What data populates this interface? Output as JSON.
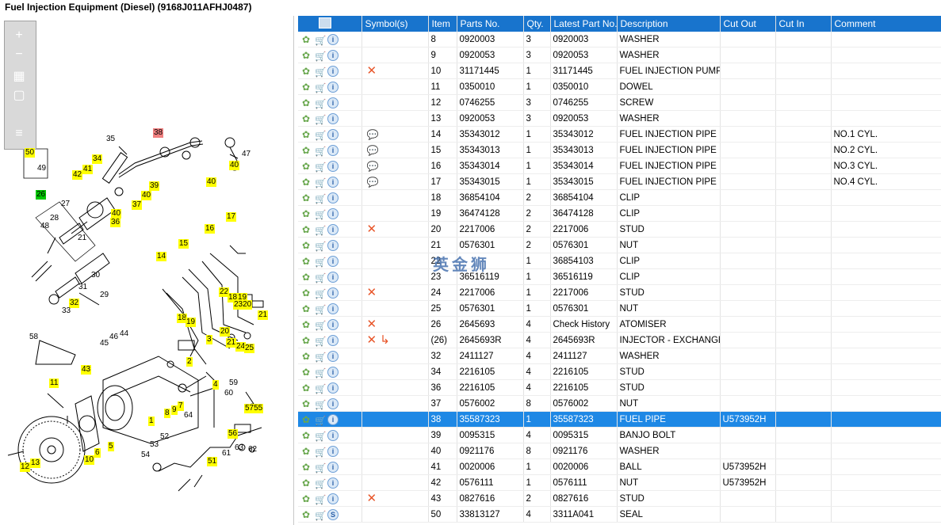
{
  "window": {
    "title": "Fuel Injection Equipment (Diesel) (9168J011AFHJ0487)"
  },
  "toolbar": {
    "zoom_in": "+",
    "zoom_out": "−",
    "fit": "▦",
    "actual": "▢",
    "list": "≡"
  },
  "watermark": "英金狮",
  "grid": {
    "columns": [
      "",
      "Symbol(s)",
      "Item",
      "Parts No.",
      "Qty.",
      "Latest Part No.",
      "Description",
      "Cut Out",
      "Cut In",
      "Comment"
    ],
    "rows": [
      {
        "sym": "",
        "item": "8",
        "part": "0920003",
        "qty": "3",
        "latest": "0920003",
        "desc": "WASHER",
        "out": "",
        "in": "",
        "comment": ""
      },
      {
        "sym": "",
        "item": "9",
        "part": "0920053",
        "qty": "3",
        "latest": "0920053",
        "desc": "WASHER",
        "out": "",
        "in": "",
        "comment": ""
      },
      {
        "sym": "✕",
        "item": "10",
        "part": "31171445",
        "qty": "1",
        "latest": "31171445",
        "desc": "FUEL INJECTION PUMP G",
        "out": "",
        "in": "",
        "comment": ""
      },
      {
        "sym": "",
        "item": "11",
        "part": "0350010",
        "qty": "1",
        "latest": "0350010",
        "desc": "DOWEL",
        "out": "",
        "in": "",
        "comment": ""
      },
      {
        "sym": "",
        "item": "12",
        "part": "0746255",
        "qty": "3",
        "latest": "0746255",
        "desc": "SCREW",
        "out": "",
        "in": "",
        "comment": ""
      },
      {
        "sym": "",
        "item": "13",
        "part": "0920053",
        "qty": "3",
        "latest": "0920053",
        "desc": "WASHER",
        "out": "",
        "in": "",
        "comment": ""
      },
      {
        "sym": "💬",
        "item": "14",
        "part": "35343012",
        "qty": "1",
        "latest": "35343012",
        "desc": "FUEL INJECTION PIPE",
        "out": "",
        "in": "",
        "comment": "NO.1 CYL."
      },
      {
        "sym": "💬",
        "item": "15",
        "part": "35343013",
        "qty": "1",
        "latest": "35343013",
        "desc": "FUEL INJECTION PIPE",
        "out": "",
        "in": "",
        "comment": "NO.2 CYL."
      },
      {
        "sym": "💬",
        "item": "16",
        "part": "35343014",
        "qty": "1",
        "latest": "35343014",
        "desc": "FUEL INJECTION PIPE",
        "out": "",
        "in": "",
        "comment": "NO.3 CYL."
      },
      {
        "sym": "💬",
        "item": "17",
        "part": "35343015",
        "qty": "1",
        "latest": "35343015",
        "desc": "FUEL INJECTION PIPE",
        "out": "",
        "in": "",
        "comment": "NO.4 CYL."
      },
      {
        "sym": "",
        "item": "18",
        "part": "36854104",
        "qty": "2",
        "latest": "36854104",
        "desc": "CLIP",
        "out": "",
        "in": "",
        "comment": ""
      },
      {
        "sym": "",
        "item": "19",
        "part": "36474128",
        "qty": "2",
        "latest": "36474128",
        "desc": "CLIP",
        "out": "",
        "in": "",
        "comment": ""
      },
      {
        "sym": "✕",
        "item": "20",
        "part": "2217006",
        "qty": "2",
        "latest": "2217006",
        "desc": "STUD",
        "out": "",
        "in": "",
        "comment": ""
      },
      {
        "sym": "",
        "item": "21",
        "part": "0576301",
        "qty": "2",
        "latest": "0576301",
        "desc": "NUT",
        "out": "",
        "in": "",
        "comment": ""
      },
      {
        "sym": "",
        "item": "22",
        "part": "",
        "qty": "1",
        "latest": "36854103",
        "desc": "CLIP",
        "out": "",
        "in": "",
        "comment": ""
      },
      {
        "sym": "",
        "item": "23",
        "part": "36516119",
        "qty": "1",
        "latest": "36516119",
        "desc": "CLIP",
        "out": "",
        "in": "",
        "comment": ""
      },
      {
        "sym": "✕",
        "item": "24",
        "part": "2217006",
        "qty": "1",
        "latest": "2217006",
        "desc": "STUD",
        "out": "",
        "in": "",
        "comment": ""
      },
      {
        "sym": "",
        "item": "25",
        "part": "0576301",
        "qty": "1",
        "latest": "0576301",
        "desc": "NUT",
        "out": "",
        "in": "",
        "comment": ""
      },
      {
        "sym": "✕",
        "item": "26",
        "part": "2645693",
        "qty": "4",
        "latest": "Check History",
        "desc": "ATOMISER",
        "out": "",
        "in": "",
        "comment": ""
      },
      {
        "sym": "✕ ↳",
        "item": "(26)",
        "part": "2645693R",
        "qty": "4",
        "latest": "2645693R",
        "desc": "INJECTOR - EXCHANGE",
        "out": "",
        "in": "",
        "comment": ""
      },
      {
        "sym": "",
        "item": "32",
        "part": "2411127",
        "qty": "4",
        "latest": "2411127",
        "desc": "WASHER",
        "out": "",
        "in": "",
        "comment": ""
      },
      {
        "sym": "",
        "item": "34",
        "part": "2216105",
        "qty": "4",
        "latest": "2216105",
        "desc": "STUD",
        "out": "",
        "in": "",
        "comment": ""
      },
      {
        "sym": "",
        "item": "36",
        "part": "2216105",
        "qty": "4",
        "latest": "2216105",
        "desc": "STUD",
        "out": "",
        "in": "",
        "comment": ""
      },
      {
        "sym": "",
        "item": "37",
        "part": "0576002",
        "qty": "8",
        "latest": "0576002",
        "desc": "NUT",
        "out": "",
        "in": "",
        "comment": ""
      },
      {
        "sym": "",
        "item": "38",
        "part": "35587323",
        "qty": "1",
        "latest": "35587323",
        "desc": "FUEL PIPE",
        "out": "U573952H",
        "in": "",
        "comment": "",
        "selected": true
      },
      {
        "sym": "",
        "item": "39",
        "part": "0095315",
        "qty": "4",
        "latest": "0095315",
        "desc": "BANJO BOLT",
        "out": "",
        "in": "",
        "comment": ""
      },
      {
        "sym": "",
        "item": "40",
        "part": "0921176",
        "qty": "8",
        "latest": "0921176",
        "desc": "WASHER",
        "out": "",
        "in": "",
        "comment": ""
      },
      {
        "sym": "",
        "item": "41",
        "part": "0020006",
        "qty": "1",
        "latest": "0020006",
        "desc": "BALL",
        "out": "U573952H",
        "in": "",
        "comment": ""
      },
      {
        "sym": "",
        "item": "42",
        "part": "0576111",
        "qty": "1",
        "latest": "0576111",
        "desc": "NUT",
        "out": "U573952H",
        "in": "",
        "comment": ""
      },
      {
        "sym": "✕",
        "item": "43",
        "part": "0827616",
        "qty": "2",
        "latest": "0827616",
        "desc": "STUD",
        "out": "",
        "in": "",
        "comment": ""
      },
      {
        "sym": "",
        "item": "50",
        "part": "33813127",
        "qty": "4",
        "latest": "3311A041",
        "desc": "SEAL",
        "out": "",
        "in": "",
        "comment": "",
        "s_icon": true
      }
    ]
  },
  "diagram": {
    "callouts": [
      {
        "t": "38",
        "c": "r"
      },
      {
        "t": "35",
        "c": ""
      },
      {
        "t": "47",
        "c": ""
      },
      {
        "t": "50",
        "c": "y"
      },
      {
        "t": "49",
        "c": ""
      },
      {
        "t": "34",
        "c": "y"
      },
      {
        "t": "41",
        "c": "y"
      },
      {
        "t": "42",
        "c": "y"
      },
      {
        "t": "39",
        "c": "y"
      },
      {
        "t": "40",
        "c": "y"
      },
      {
        "t": "40",
        "c": "y"
      },
      {
        "t": "40",
        "c": "y"
      },
      {
        "t": "26",
        "c": "g"
      },
      {
        "t": "27",
        "c": ""
      },
      {
        "t": "37",
        "c": "y"
      },
      {
        "t": "40",
        "c": "y"
      },
      {
        "t": "36",
        "c": "y"
      },
      {
        "t": "28",
        "c": ""
      },
      {
        "t": "48",
        "c": ""
      },
      {
        "t": "17",
        "c": "y"
      },
      {
        "t": "16",
        "c": "y"
      },
      {
        "t": "21",
        "c": ""
      },
      {
        "t": "15",
        "c": "y"
      },
      {
        "t": "14",
        "c": "y"
      },
      {
        "t": "30",
        "c": ""
      },
      {
        "t": "31",
        "c": ""
      },
      {
        "t": "29",
        "c": ""
      },
      {
        "t": "32",
        "c": "y"
      },
      {
        "t": "33",
        "c": ""
      },
      {
        "t": "22",
        "c": "y"
      },
      {
        "t": "18",
        "c": "y"
      },
      {
        "t": "19",
        "c": "y"
      },
      {
        "t": "2320",
        "c": "y"
      },
      {
        "t": "21",
        "c": "y"
      },
      {
        "t": "18",
        "c": "y"
      },
      {
        "t": "19",
        "c": "y"
      },
      {
        "t": "20",
        "c": "y"
      },
      {
        "t": "3",
        "c": "y"
      },
      {
        "t": "21",
        "c": "y"
      },
      {
        "t": "24",
        "c": "y"
      },
      {
        "t": "25",
        "c": "y"
      },
      {
        "t": "58",
        "c": ""
      },
      {
        "t": "44",
        "c": ""
      },
      {
        "t": "46",
        "c": ""
      },
      {
        "t": "45",
        "c": ""
      },
      {
        "t": "2",
        "c": "y"
      },
      {
        "t": "43",
        "c": "y"
      },
      {
        "t": "4",
        "c": "y"
      },
      {
        "t": "59",
        "c": ""
      },
      {
        "t": "60",
        "c": ""
      },
      {
        "t": "11",
        "c": "y"
      },
      {
        "t": "8",
        "c": "y"
      },
      {
        "t": "9",
        "c": "y"
      },
      {
        "t": "7",
        "c": "y"
      },
      {
        "t": "64",
        "c": ""
      },
      {
        "t": "5755",
        "c": "y"
      },
      {
        "t": "1",
        "c": "y"
      },
      {
        "t": "56",
        "c": "y"
      },
      {
        "t": "6",
        "c": "y"
      },
      {
        "t": "5",
        "c": "y"
      },
      {
        "t": "52",
        "c": ""
      },
      {
        "t": "53",
        "c": ""
      },
      {
        "t": "54",
        "c": ""
      },
      {
        "t": "61",
        "c": ""
      },
      {
        "t": "63",
        "c": ""
      },
      {
        "t": "62",
        "c": ""
      },
      {
        "t": "10",
        "c": "y"
      },
      {
        "t": "51",
        "c": "y"
      },
      {
        "t": "13",
        "c": "y"
      },
      {
        "t": "12",
        "c": "y"
      }
    ]
  }
}
